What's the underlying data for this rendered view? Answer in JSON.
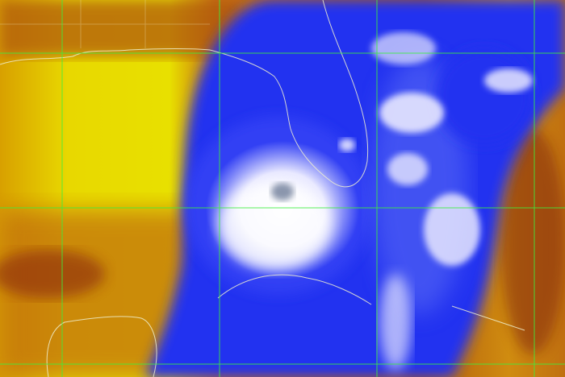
{
  "image": {
    "kind": "enhanced infrared satellite image of a hurricane over the Gulf of Mexico",
    "colors": {
      "clear_warm": "#e8e000",
      "land_warm": "#c0640a",
      "dark_warm": "#7a1e08",
      "cloud_cold": "#1e2cf0",
      "cloud_coldest": "#f4f4ff",
      "grid": "#3cf03c",
      "boundaries": "#f0f0d0"
    }
  }
}
